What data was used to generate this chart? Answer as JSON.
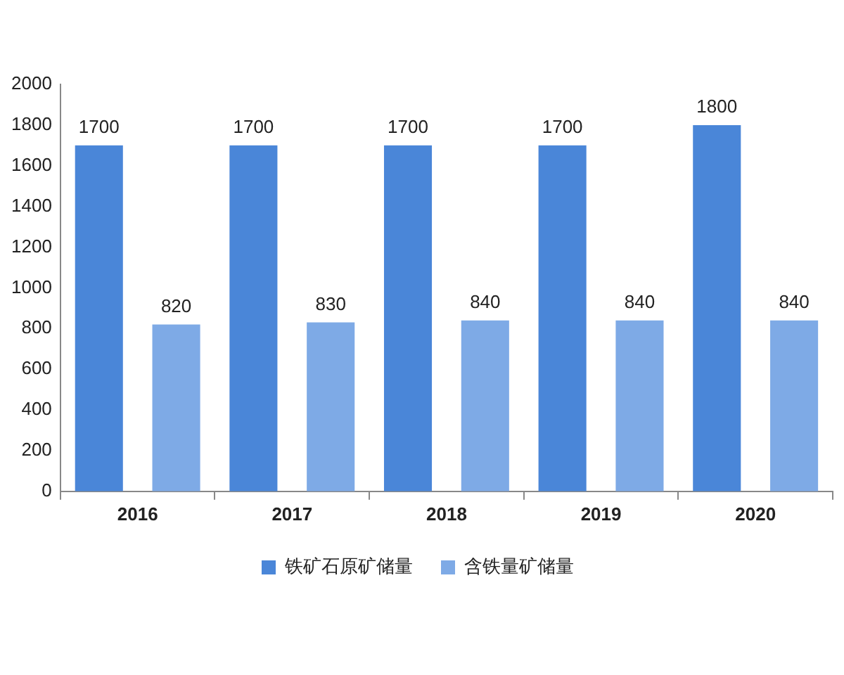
{
  "chart_data": {
    "type": "bar",
    "categories": [
      "2016",
      "2017",
      "2018",
      "2019",
      "2020"
    ],
    "series": [
      {
        "name": "铁矿石原矿储量",
        "color": "#4a86d8",
        "values": [
          1700,
          1700,
          1700,
          1700,
          1800
        ]
      },
      {
        "name": "含铁量矿储量",
        "color": "#7eaae6",
        "values": [
          820,
          830,
          840,
          840,
          840
        ]
      }
    ],
    "ylim": [
      0,
      2000
    ],
    "yticks": [
      0,
      200,
      400,
      600,
      800,
      1000,
      1200,
      1400,
      1600,
      1800,
      2000
    ],
    "grid": false,
    "legend": "bottom",
    "data_labels": true
  }
}
